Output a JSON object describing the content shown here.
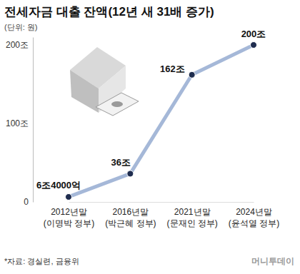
{
  "chart_data": {
    "type": "line",
    "title": "전세자금 대출 잔액(12년 새 31배 증가)",
    "subtitle": "(단위: 원)",
    "categories": [
      "2012년말\n(이명박 정부)",
      "2016년말\n(박근혜 정부)",
      "2021년말\n(문재인 정부)",
      "2024년말\n(윤석열 정부)"
    ],
    "values": [
      6.4,
      36,
      162,
      200
    ],
    "value_labels": [
      "6조4000억",
      "36조",
      "162조",
      "200조"
    ],
    "data_labels": true,
    "color": "#a5b8d8",
    "marker": "circle",
    "ylim": [
      0,
      210
    ],
    "yticks": [
      0,
      {
        "value": 100,
        "label": "100조"
      },
      {
        "value": 200,
        "label": "200조"
      }
    ],
    "grid": false,
    "source": "*자료: 경실련, 금융위",
    "credit": "머니투데이"
  }
}
